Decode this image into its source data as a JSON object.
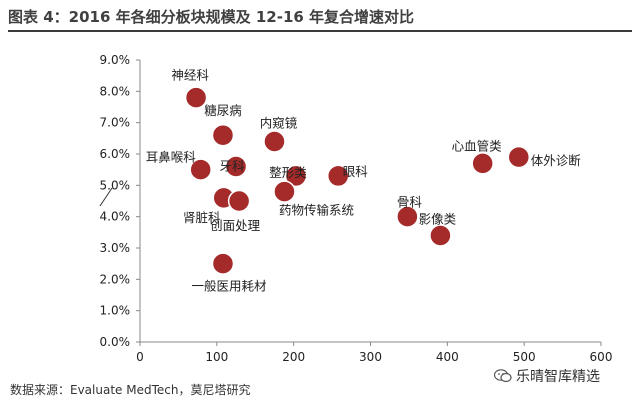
{
  "header": {
    "title": "图表 4：2016 年各细分板块规模及 12-16 年复合增速对比"
  },
  "footer": {
    "source": "数据来源：Evaluate MedTech，莫尼塔研究",
    "watermark": "乐晴智库精选",
    "watermark_icon": "wechat-icon"
  },
  "chart_data": {
    "type": "scatter",
    "title": "",
    "xlabel": "",
    "ylabel": "",
    "xlim": [
      0,
      600
    ],
    "ylim": [
      0,
      0.09
    ],
    "x_ticks": [
      0,
      100,
      200,
      300,
      400,
      500,
      600
    ],
    "y_ticks": [
      0,
      0.01,
      0.02,
      0.03,
      0.04,
      0.05,
      0.06,
      0.07,
      0.08,
      0.09
    ],
    "y_tick_labels": [
      "0.0%",
      "1.0%",
      "2.0%",
      "3.0%",
      "4.0%",
      "5.0%",
      "6.0%",
      "7.0%",
      "8.0%",
      "9.0%"
    ],
    "grid": false,
    "marker_color": "#a52a2a",
    "points": [
      {
        "label": "神经科",
        "x": 73,
        "y": 0.078
      },
      {
        "label": "糖尿病",
        "x": 108,
        "y": 0.066
      },
      {
        "label": "内窥镜",
        "x": 175,
        "y": 0.064
      },
      {
        "label": "耳鼻喉科",
        "x": 79,
        "y": 0.055
      },
      {
        "label": "牙科",
        "x": 125,
        "y": 0.056
      },
      {
        "label": "整形类",
        "x": 203,
        "y": 0.053
      },
      {
        "label": "眼科",
        "x": 258,
        "y": 0.053
      },
      {
        "label": "心血管类",
        "x": 446,
        "y": 0.057
      },
      {
        "label": "体外诊断",
        "x": 493,
        "y": 0.059
      },
      {
        "label": "肾脏科",
        "x": 109,
        "y": 0.046
      },
      {
        "label": "创面处理",
        "x": 129,
        "y": 0.045
      },
      {
        "label": "药物传输系统",
        "x": 188,
        "y": 0.048
      },
      {
        "label": "骨科",
        "x": 348,
        "y": 0.04
      },
      {
        "label": "影像类",
        "x": 391,
        "y": 0.034
      },
      {
        "label": "一般医用耗材",
        "x": 108,
        "y": 0.025
      }
    ]
  }
}
